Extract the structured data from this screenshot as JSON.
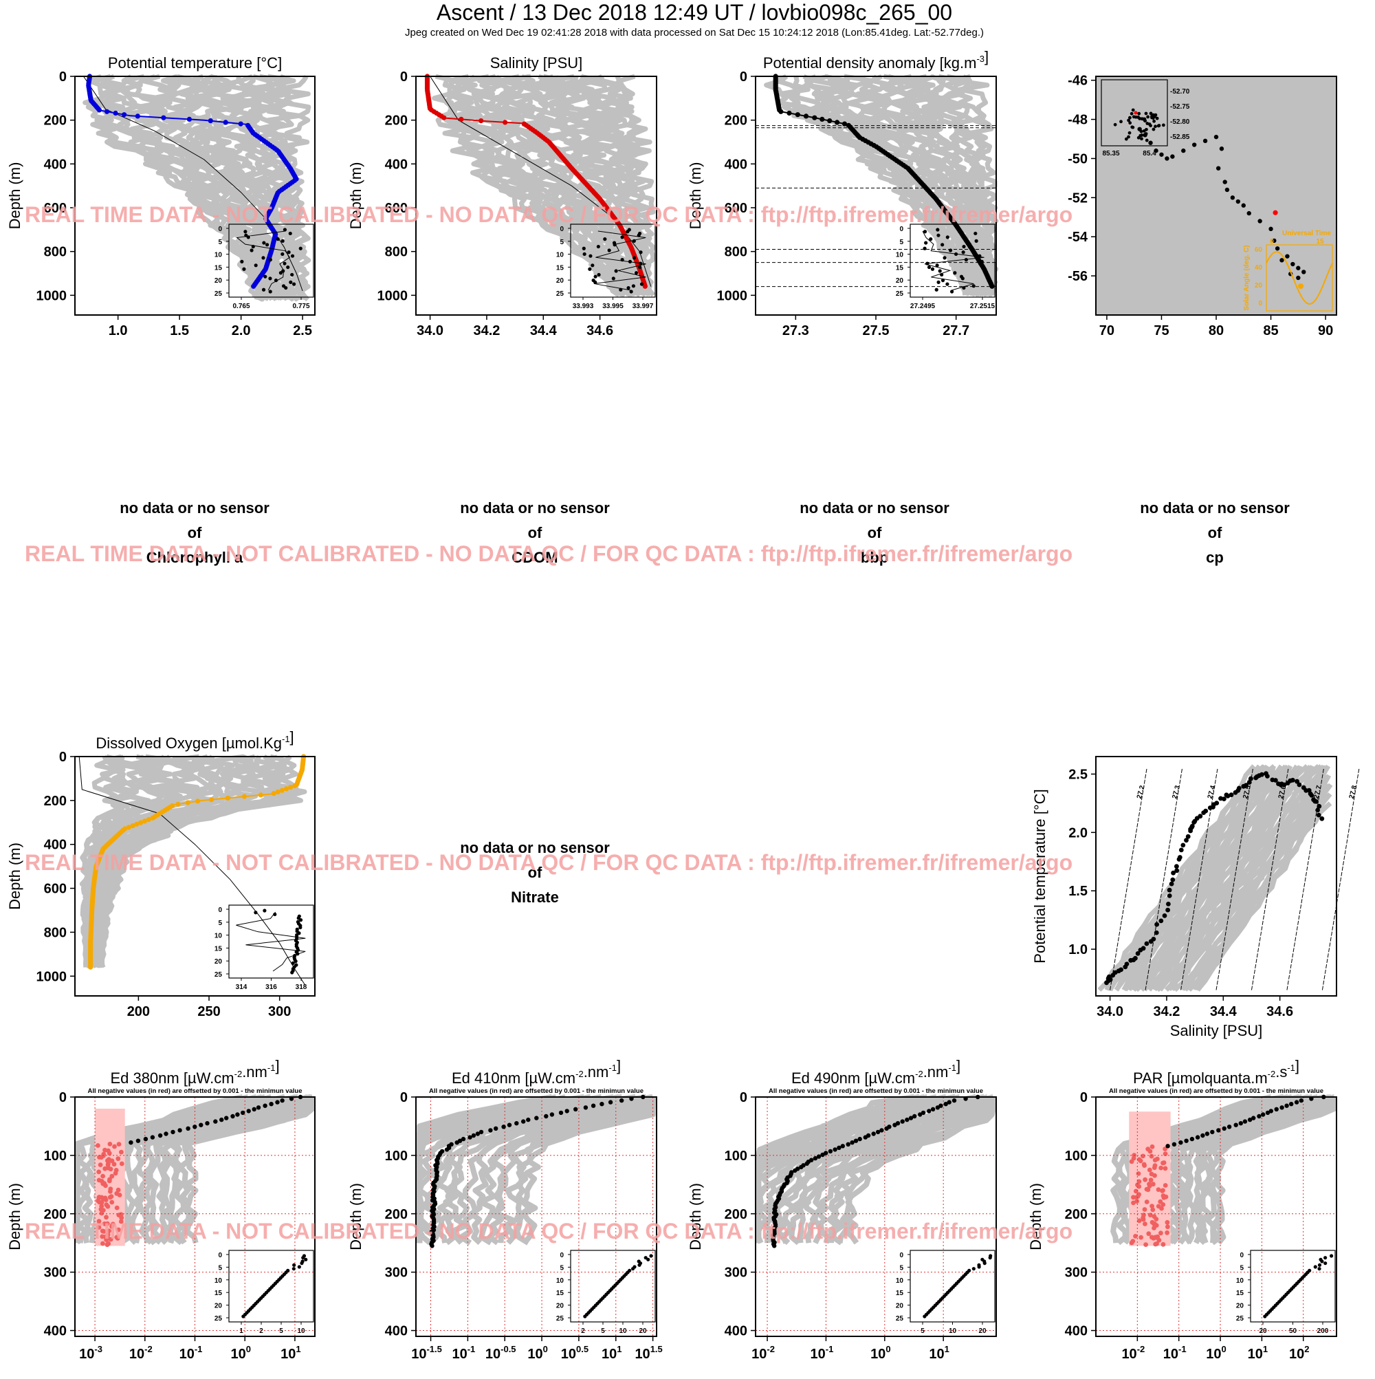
{
  "header": {
    "title": "Ascent / 13 Dec 2018 12:49 UT /  lovbio098c_265_00",
    "subtitle": "Jpeg created on Wed Dec 19 02:41:28 2018 with data processed on Sat Dec 15 10:24:12 2018 (Lon:85.41deg. Lat:-52.77deg.)"
  },
  "watermark": "REAL TIME DATA - NOT CALIBRATED - NO DATA QC   /  FOR QC DATA : ftp://ftp.ifremer.fr/ifremer/argo",
  "colors": {
    "background_cloud": "#c0c0c0",
    "temperature": "#0000dd",
    "salinity": "#dd0000",
    "density": "#000000",
    "oxygen": "#f5a800",
    "negative_values": "#f06060",
    "negative_cloud": "#ffc4c4",
    "watermark": "#f5a0a0",
    "solar": "#f5a800",
    "last_position": "#ff0000"
  },
  "no_data": [
    {
      "line1": "no data or no sensor",
      "line2": "of",
      "param": "Chlorophyll a"
    },
    {
      "line1": "no data or no sensor",
      "line2": "of",
      "param": "CDOM"
    },
    {
      "line1": "no data or no sensor",
      "line2": "of",
      "param": "bbp"
    },
    {
      "line1": "no data or no sensor",
      "line2": "of",
      "param": "cp"
    },
    {
      "line1": "no data or no sensor",
      "line2": "of",
      "param": "Nitrate"
    }
  ],
  "negative_note": "All negative values (in red) are offsetted by 0.001 - the minimun value",
  "chart_data": [
    {
      "id": "temp",
      "type": "line",
      "color": "temperature",
      "title": "Potential temperature [°C]",
      "ylabel": "Depth (m)",
      "xlim": [
        0.65,
        2.6
      ],
      "ylim": [
        0,
        1090
      ],
      "y_reversed": true,
      "xticks": [
        1.0,
        1.5,
        2.0,
        2.5
      ],
      "xtick_labels": [
        "1.0",
        "1.5",
        "2.0",
        "2.5"
      ],
      "yticks": [
        0,
        200,
        400,
        600,
        800,
        1000
      ],
      "profile": {
        "x": [
          0.77,
          0.76,
          0.78,
          0.85,
          1.1,
          1.7,
          2.05,
          2.1,
          2.2,
          2.3,
          2.35,
          2.4,
          2.45,
          2.3,
          2.25,
          2.2,
          2.28,
          2.25,
          2.2,
          2.1
        ],
        "y": [
          0,
          40,
          110,
          155,
          180,
          200,
          220,
          260,
          300,
          340,
          380,
          420,
          470,
          530,
          600,
          650,
          720,
          790,
          880,
          960
        ]
      },
      "reference": {
        "x": [
          0.72,
          0.9,
          1.3,
          1.7,
          2.0,
          2.2,
          2.35,
          2.45,
          2.5
        ],
        "y": [
          0,
          150,
          250,
          380,
          530,
          650,
          780,
          900,
          980
        ]
      },
      "cloud": {
        "min": [
          0.68,
          0.68,
          0.7,
          0.85,
          1.2,
          1.6,
          1.9,
          2.05,
          2.1
        ],
        "max": [
          2.55,
          2.55,
          2.55,
          2.55,
          2.55,
          2.55,
          2.55,
          2.55,
          2.55
        ],
        "y": [
          0,
          100,
          200,
          300,
          400,
          600,
          800,
          950,
          1020
        ]
      },
      "inset": {
        "xticks": [
          "0.765",
          "0.775"
        ],
        "yticks": [
          "0",
          "5",
          "10",
          "15",
          "20",
          "25"
        ]
      }
    },
    {
      "id": "sal",
      "type": "line",
      "color": "salinity",
      "title": "Salinity [PSU]",
      "ylabel": "Depth (m)",
      "xlim": [
        33.95,
        34.8
      ],
      "ylim": [
        0,
        1090
      ],
      "y_reversed": true,
      "xticks": [
        34.0,
        34.2,
        34.4,
        34.6
      ],
      "xtick_labels": [
        "34.0",
        "34.2",
        "34.4",
        "34.6"
      ],
      "yticks": [
        0,
        200,
        400,
        600,
        800,
        1000
      ],
      "profile": {
        "x": [
          33.99,
          33.99,
          34.0,
          34.05,
          34.2,
          34.33,
          34.38,
          34.42,
          34.5,
          34.6,
          34.67,
          34.71,
          34.74,
          34.76
        ],
        "y": [
          0,
          60,
          150,
          190,
          205,
          215,
          260,
          300,
          420,
          560,
          680,
          780,
          880,
          960
        ]
      },
      "reference": {
        "x": [
          34.0,
          34.1,
          34.3,
          34.5,
          34.65,
          34.74,
          34.78
        ],
        "y": [
          0,
          200,
          350,
          500,
          650,
          800,
          960
        ]
      },
      "cloud": {
        "min": [
          33.98,
          33.98,
          34.0,
          34.05,
          34.15,
          34.35,
          34.55,
          34.65
        ],
        "max": [
          34.75,
          34.75,
          34.77,
          34.78,
          34.79,
          34.79,
          34.79,
          34.79
        ],
        "y": [
          0,
          100,
          200,
          300,
          450,
          650,
          850,
          1000
        ]
      },
      "inset": {
        "xticks": [
          "33.993",
          "33.995",
          "33.997"
        ],
        "yticks": [
          "0",
          "5",
          "10",
          "15",
          "20",
          "25"
        ]
      }
    },
    {
      "id": "dens",
      "type": "line",
      "color": "density",
      "title": "Potential density anomaly [kg.m",
      "title_sup": "-3",
      "title_end": "]",
      "ylabel": "Depth (m)",
      "xlim": [
        27.2,
        27.8
      ],
      "ylim": [
        0,
        1090
      ],
      "y_reversed": true,
      "xticks": [
        27.3,
        27.5,
        27.7
      ],
      "xtick_labels": [
        "27.3",
        "27.5",
        "27.7"
      ],
      "yticks": [
        0,
        200,
        400,
        600,
        800,
        1000
      ],
      "hlines": [
        225,
        235,
        510,
        790,
        850,
        960
      ],
      "profile": {
        "x": [
          27.25,
          27.25,
          27.26,
          27.35,
          27.43,
          27.46,
          27.5,
          27.58,
          27.65,
          27.7,
          27.74,
          27.77,
          27.79
        ],
        "y": [
          0,
          60,
          160,
          190,
          220,
          280,
          320,
          420,
          560,
          680,
          790,
          880,
          960
        ]
      },
      "reference": null,
      "cloud": {
        "min": [
          27.22,
          27.22,
          27.3,
          27.4,
          27.5,
          27.6,
          27.68,
          27.72
        ],
        "max": [
          27.78,
          27.78,
          27.79,
          27.8,
          27.8,
          27.8,
          27.8,
          27.8
        ],
        "y": [
          0,
          100,
          200,
          300,
          450,
          650,
          850,
          1000
        ]
      },
      "inset": {
        "xticks": [
          "27.2495",
          "27.2515"
        ],
        "yticks": [
          "0",
          "5",
          "10",
          "15",
          "20",
          "25"
        ]
      }
    },
    {
      "id": "traj",
      "type": "scatter",
      "xlim": [
        69,
        91
      ],
      "ylim": [
        -58,
        -45.8
      ],
      "xticks": [
        70,
        75,
        80,
        85,
        90
      ],
      "xtick_labels": [
        "70",
        "75",
        "80",
        "85",
        "90"
      ],
      "yticks": [
        -46,
        -48,
        -50,
        -52,
        -54,
        -56
      ],
      "ytick_labels": [
        "-46",
        "-48",
        "-50",
        "-52",
        "-54",
        "-56"
      ],
      "points": {
        "x": [
          73,
          73.5,
          74,
          74.5,
          75,
          75.5,
          76,
          77,
          78,
          79,
          80,
          80.5,
          80.2,
          80.8,
          81,
          81.5,
          82,
          82.5,
          83,
          84,
          85,
          85.3,
          85.6,
          86,
          86.5,
          87,
          87.5,
          88,
          87.5,
          86.8
        ],
        "y": [
          -48.5,
          -48.8,
          -49.2,
          -49.6,
          -49.8,
          -50,
          -49.9,
          -49.6,
          -49.3,
          -49.1,
          -48.9,
          -49.5,
          -50.5,
          -51.2,
          -51.6,
          -52,
          -52.2,
          -52.4,
          -52.8,
          -53.2,
          -53.6,
          -54.2,
          -54.6,
          -55.2,
          -55,
          -55.4,
          -55.6,
          -55.8,
          -56.1,
          -55.9
        ]
      },
      "last_position": {
        "x": 85.41,
        "y": -52.77
      },
      "inset": {
        "xticks": [
          "85.35",
          "85.4"
        ],
        "yticks": [
          "-52.70",
          "-52.75",
          "-52.80",
          "-52.85"
        ]
      },
      "solar_inset": {
        "title": "Universal Time",
        "ylabel": "Solar Angle (deg. C)",
        "xticks": [
          "0",
          "15"
        ],
        "yticks": [
          "60",
          "40",
          "20",
          "0"
        ]
      }
    },
    {
      "id": "oxy",
      "type": "line",
      "color": "oxygen",
      "title": "Dissolved Oxygen [µmol.Kg",
      "title_sup": "-1",
      "title_end": "]",
      "ylabel": "Depth (m)",
      "xlim": [
        155,
        325
      ],
      "ylim": [
        0,
        1090
      ],
      "y_reversed": true,
      "xticks": [
        200,
        250,
        300
      ],
      "xtick_labels": [
        "200",
        "250",
        "300"
      ],
      "yticks": [
        0,
        200,
        400,
        600,
        800,
        1000
      ],
      "profile": {
        "x": [
          317,
          316,
          312,
          295,
          270,
          245,
          225,
          210,
          190,
          175,
          170,
          168,
          167,
          166,
          166
        ],
        "y": [
          0,
          60,
          130,
          170,
          185,
          200,
          220,
          280,
          330,
          420,
          500,
          600,
          700,
          850,
          960
        ]
      },
      "reference": {
        "x": [
          158,
          160,
          185,
          215,
          240,
          265,
          285,
          300,
          310,
          318
        ],
        "y": [
          0,
          150,
          200,
          260,
          400,
          560,
          720,
          850,
          960,
          1040
        ]
      },
      "cloud": {
        "min": [
          160,
          162,
          175,
          165,
          160,
          160,
          162
        ],
        "max": [
          320,
          320,
          318,
          240,
          195,
          180,
          175
        ],
        "y": [
          0,
          100,
          200,
          300,
          450,
          700,
          960
        ]
      },
      "inset": {
        "xticks": [
          "314",
          "316",
          "318"
        ],
        "yticks": [
          "0",
          "5",
          "10",
          "15",
          "20",
          "25"
        ]
      }
    },
    {
      "id": "ts",
      "type": "scatter",
      "xlabel": "Salinity [PSU]",
      "ylabel": "Potential temperature [°C]",
      "xlim": [
        33.95,
        34.8
      ],
      "ylim": [
        0.6,
        2.65
      ],
      "xticks": [
        34.0,
        34.2,
        34.4,
        34.6
      ],
      "xtick_labels": [
        "34.0",
        "34.2",
        "34.4",
        "34.6"
      ],
      "yticks": [
        1.0,
        1.5,
        2.0,
        2.5
      ],
      "ytick_labels": [
        "1.0",
        "1.5",
        "2.0",
        "2.5"
      ],
      "isopycnals": [
        "27.2",
        "27.3",
        "27.4",
        "27.5",
        "27.6",
        "27.7",
        "27.8"
      ],
      "points": {
        "x": [
          33.99,
          34.0,
          34.05,
          34.1,
          34.15,
          34.2,
          34.22,
          34.25,
          34.28,
          34.3,
          34.35,
          34.4,
          34.45,
          34.5,
          34.55,
          34.6,
          34.65,
          34.7,
          34.73,
          34.75
        ],
        "y": [
          0.72,
          0.76,
          0.85,
          0.95,
          1.1,
          1.35,
          1.6,
          1.8,
          2.0,
          2.1,
          2.2,
          2.3,
          2.35,
          2.45,
          2.5,
          2.4,
          2.45,
          2.35,
          2.25,
          2.1
        ]
      }
    },
    {
      "id": "ed380",
      "type": "scatter",
      "title": "Ed 380nm [µW.cm",
      "title_sup": "-2",
      "title_mid": ".nm",
      "title_sup2": "-1",
      "title_end": "]",
      "ylabel": "Depth (m)",
      "xscale": "log",
      "xlim": [
        -3.4,
        1.4
      ],
      "ylim": [
        0,
        410
      ],
      "y_reversed": true,
      "xticks": [
        -3,
        -2,
        -1,
        0,
        1
      ],
      "xtick_labels": [
        "10",
        "10",
        "10",
        "10",
        "10"
      ],
      "xtick_exp": [
        "-3",
        "-2",
        "-1",
        "0",
        "1"
      ],
      "yticks": [
        0,
        100,
        200,
        300,
        400
      ],
      "profile": {
        "x": [
          1.1,
          0.8,
          0.2,
          -0.5,
          -1.2,
          -1.8,
          -2.4
        ],
        "y": [
          0,
          5,
          20,
          40,
          55,
          68,
          80
        ]
      },
      "negative": {
        "x_range": [
          -3.0,
          -2.4
        ],
        "y_range": [
          80,
          255
        ]
      },
      "inset": {
        "xticks": [
          "1",
          "2",
          "5",
          "10"
        ],
        "yticks": [
          "0",
          "5",
          "10",
          "15",
          "20",
          "25"
        ]
      }
    },
    {
      "id": "ed410",
      "type": "scatter",
      "title": "Ed 410nm [µW.cm",
      "title_sup": "-2",
      "title_mid": ".nm",
      "title_sup2": "-1",
      "title_end": "]",
      "ylabel": "Depth (m)",
      "xscale": "log",
      "xlim": [
        -1.7,
        1.55
      ],
      "ylim": [
        0,
        410
      ],
      "y_reversed": true,
      "xticks": [
        -1.5,
        -1,
        -0.5,
        0,
        0.5,
        1,
        1.5
      ],
      "xtick_labels": [
        "10",
        "10",
        "10",
        "10",
        "10",
        "10",
        "10"
      ],
      "xtick_exp": [
        "-1.5",
        "-1",
        "-0.5",
        "0",
        "0.5",
        "1",
        "1.5"
      ],
      "yticks": [
        0,
        100,
        200,
        300,
        400
      ],
      "profile": {
        "x": [
          1.35,
          1.1,
          0.5,
          -0.2,
          -0.8,
          -1.2,
          -1.4,
          -1.45,
          -1.48
        ],
        "y": [
          0,
          5,
          20,
          40,
          60,
          80,
          100,
          150,
          255
        ]
      },
      "negative": null,
      "inset": {
        "xticks": [
          "2",
          "5",
          "10",
          "20"
        ],
        "yticks": [
          "0",
          "5",
          "10",
          "15",
          "20",
          "25"
        ]
      }
    },
    {
      "id": "ed490",
      "type": "scatter",
      "title": "Ed 490nm [µW.cm",
      "title_sup": "-2",
      "title_mid": ".nm",
      "title_sup2": "-1",
      "title_end": "]",
      "ylabel": "Depth (m)",
      "xscale": "log",
      "xlim": [
        -2.2,
        1.9
      ],
      "ylim": [
        0,
        410
      ],
      "y_reversed": true,
      "xticks": [
        -2,
        -1,
        0,
        1
      ],
      "xtick_labels": [
        "10",
        "10",
        "10",
        "10"
      ],
      "xtick_exp": [
        "-2",
        "-1",
        "0",
        "1"
      ],
      "yticks": [
        0,
        100,
        200,
        300,
        400
      ],
      "profile": {
        "x": [
          1.6,
          1.2,
          0.6,
          0.0,
          -0.6,
          -1.2,
          -1.6,
          -1.85,
          -1.9
        ],
        "y": [
          0,
          5,
          30,
          55,
          80,
          105,
          130,
          180,
          255
        ]
      },
      "negative": null,
      "inset": {
        "xticks": [
          "5",
          "10",
          "20"
        ],
        "yticks": [
          "0",
          "5",
          "10",
          "15",
          "20",
          "25"
        ]
      }
    },
    {
      "id": "par",
      "type": "scatter",
      "title": "PAR [µmolquanta.m",
      "title_sup": "-2",
      "title_mid": ".s",
      "title_sup2": "-1",
      "title_end": "]",
      "ylabel": "Depth (m)",
      "xscale": "log",
      "xlim": [
        -3,
        2.8
      ],
      "ylim": [
        0,
        410
      ],
      "y_reversed": true,
      "xticks": [
        -2,
        -1,
        0,
        1,
        2
      ],
      "xtick_labels": [
        "10",
        "10",
        "10",
        "10",
        "10"
      ],
      "xtick_exp": [
        "-2",
        "-1",
        "0",
        "1",
        "2"
      ],
      "yticks": [
        0,
        100,
        200,
        300,
        400
      ],
      "profile": {
        "x": [
          2.5,
          2.0,
          1.2,
          0.5,
          -0.2,
          -0.8,
          -1.3
        ],
        "y": [
          0,
          5,
          25,
          45,
          60,
          75,
          85
        ]
      },
      "negative": {
        "x_range": [
          -2.2,
          -1.2
        ],
        "y_range": [
          85,
          255
        ]
      },
      "inset": {
        "xticks": [
          "20",
          "50",
          "200"
        ],
        "yticks": [
          "0",
          "5",
          "10",
          "15",
          "20",
          "25"
        ]
      }
    }
  ]
}
